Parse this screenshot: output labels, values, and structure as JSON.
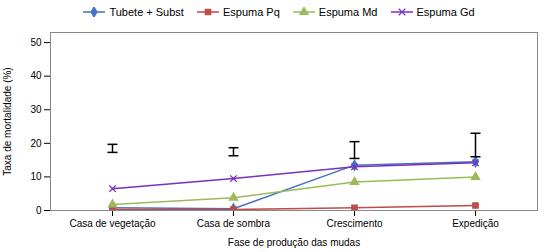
{
  "chart_data": {
    "type": "line",
    "categories": [
      "Casa de vegetação",
      "Casa de sombra",
      "Crescimento",
      "Expedição"
    ],
    "series": [
      {
        "name": "Tubete + Subst",
        "color": "#4472C4",
        "marker": "diamond",
        "values": [
          0.8,
          0.5,
          13.5,
          14.5
        ]
      },
      {
        "name": "Espuma Pq",
        "color": "#BE4B48",
        "marker": "square",
        "values": [
          0.3,
          0.3,
          0.8,
          1.5
        ]
      },
      {
        "name": "Espuma Md",
        "color": "#9BBB59",
        "marker": "triangle",
        "values": [
          1.8,
          3.8,
          8.5,
          10.0
        ]
      },
      {
        "name": "Espuma Gd",
        "color": "#7B2FBE",
        "marker": "x",
        "values": [
          6.5,
          9.5,
          13.0,
          14.2
        ]
      }
    ],
    "error_bars": [
      {
        "category": "Casa de vegetação",
        "center": 18.5,
        "half_height": 1.2
      },
      {
        "category": "Casa de sombra",
        "center": 17.5,
        "half_height": 1.2
      },
      {
        "category": "Crescimento",
        "center": 18.0,
        "half_height": 2.5
      },
      {
        "category": "Expedição",
        "center": 19.5,
        "half_height": 3.5
      }
    ],
    "xlabel": "Fase de produção das mudas",
    "ylabel": "Taxa de mortalidade (%)",
    "ylim": [
      0,
      53
    ],
    "yticks": [
      0,
      10,
      20,
      30,
      40,
      50
    ],
    "grid": false,
    "legend": "top"
  }
}
